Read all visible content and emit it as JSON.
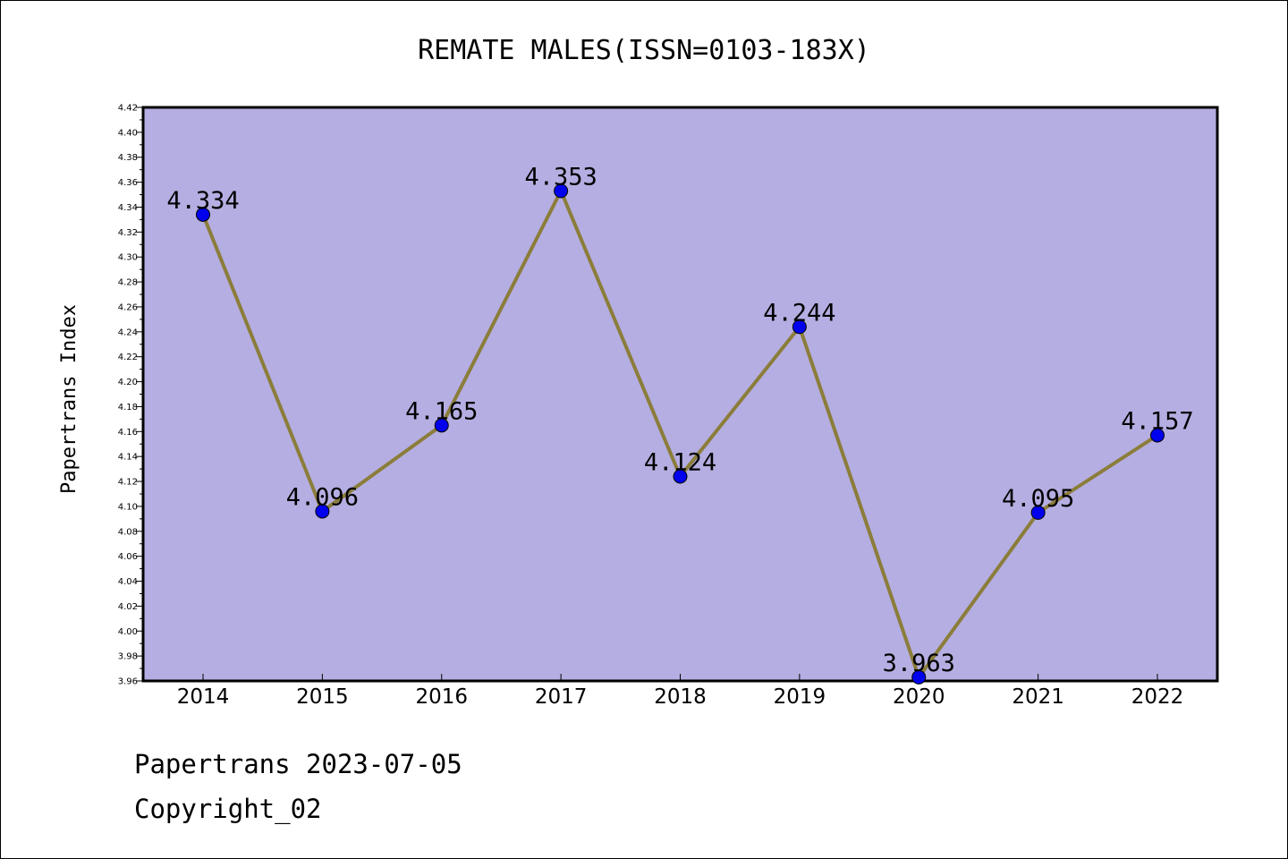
{
  "chart_data": {
    "type": "line",
    "title": "REMATE MALES(ISSN=0103-183X)",
    "xlabel": "",
    "ylabel": "Papertrans Index",
    "categories": [
      "2014",
      "2015",
      "2016",
      "2017",
      "2018",
      "2019",
      "2020",
      "2021",
      "2022"
    ],
    "values": [
      4.334,
      4.096,
      4.165,
      4.353,
      4.124,
      4.244,
      3.963,
      4.095,
      4.157
    ],
    "data_labels": [
      "4.334",
      "4.096",
      "4.165",
      "4.353",
      "4.124",
      "4.244",
      "3.963",
      "4.095",
      "4.157"
    ],
    "ylim": [
      3.96,
      4.42
    ],
    "ytick_step": 0.02,
    "ytick_labels": [
      "3.96",
      "3.98",
      "4.00",
      "4.02",
      "4.04",
      "4.06",
      "4.08",
      "4.10",
      "4.12",
      "4.14",
      "4.16",
      "4.18",
      "4.20",
      "4.22",
      "4.24",
      "4.26",
      "4.28",
      "4.30",
      "4.32",
      "4.34",
      "4.36",
      "4.38",
      "4.40",
      "4.42"
    ],
    "grid": false,
    "line_color": "#8b7d3a",
    "marker_color": "#0000ee",
    "plot_background": "#b5aee2"
  },
  "footer": {
    "line1": "Papertrans 2023-07-05",
    "line2": "Copyright_02"
  }
}
